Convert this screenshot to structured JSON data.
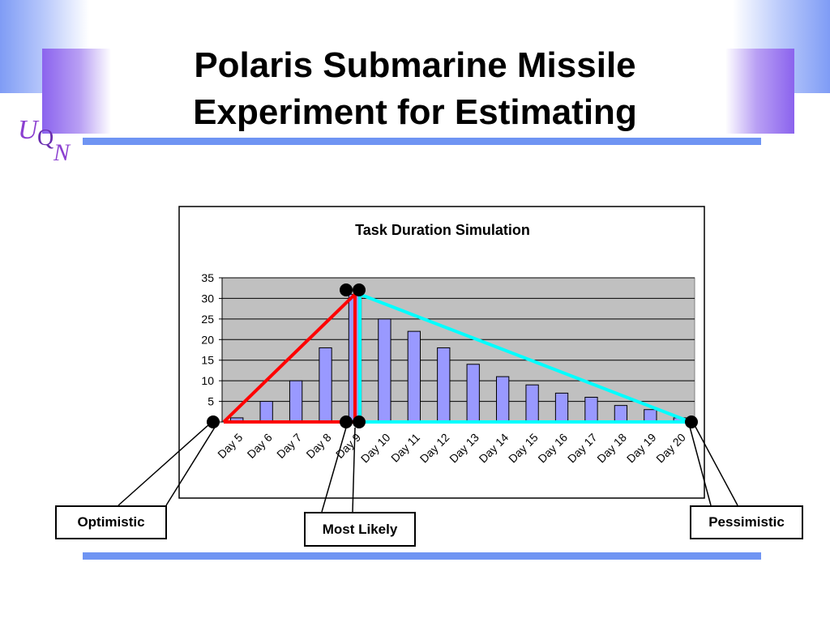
{
  "slide": {
    "title_line1": "Polaris Submarine Missile",
    "title_line2": "Experiment for Estimating",
    "logo": {
      "u": "U",
      "q": "Q",
      "n": "N"
    }
  },
  "callouts": {
    "optimistic": "Optimistic",
    "most_likely": "Most Likely",
    "pessimistic": "Pessimistic"
  },
  "colors": {
    "bar_fill": "#9999ff",
    "plot_background": "#c0c0c0",
    "optimistic_line": "#ff0000",
    "pessimistic_line": "#00ffff",
    "rule": "#6f94f3"
  },
  "chart_data": {
    "type": "bar",
    "title": "Task Duration Simulation",
    "xlabel": "",
    "ylabel": "",
    "ylim": [
      0,
      35
    ],
    "yticks": [
      0,
      5,
      10,
      15,
      20,
      25,
      30,
      35
    ],
    "grid": true,
    "legend": "none",
    "categories": [
      "Day 5",
      "Day 6",
      "Day 7",
      "Day 8",
      "Day 9",
      "Day 10",
      "Day 11",
      "Day 12",
      "Day 13",
      "Day 14",
      "Day 15",
      "Day 16",
      "Day 17",
      "Day 18",
      "Day 19",
      "Day 20"
    ],
    "values": [
      1,
      5,
      10,
      18,
      31,
      25,
      22,
      18,
      14,
      11,
      9,
      7,
      6,
      4,
      3,
      1
    ],
    "overlay_lines": [
      {
        "name": "optimistic",
        "points": [
          [
            "Day 5",
            0
          ],
          [
            "Day 9",
            31
          ],
          [
            "Day 9",
            0
          ],
          [
            "Day 5",
            0
          ]
        ]
      },
      {
        "name": "pessimistic",
        "points": [
          [
            "Day 9",
            31
          ],
          [
            "Day 20",
            0
          ],
          [
            "Day 9",
            0
          ],
          [
            "Day 9",
            31
          ]
        ]
      }
    ]
  }
}
